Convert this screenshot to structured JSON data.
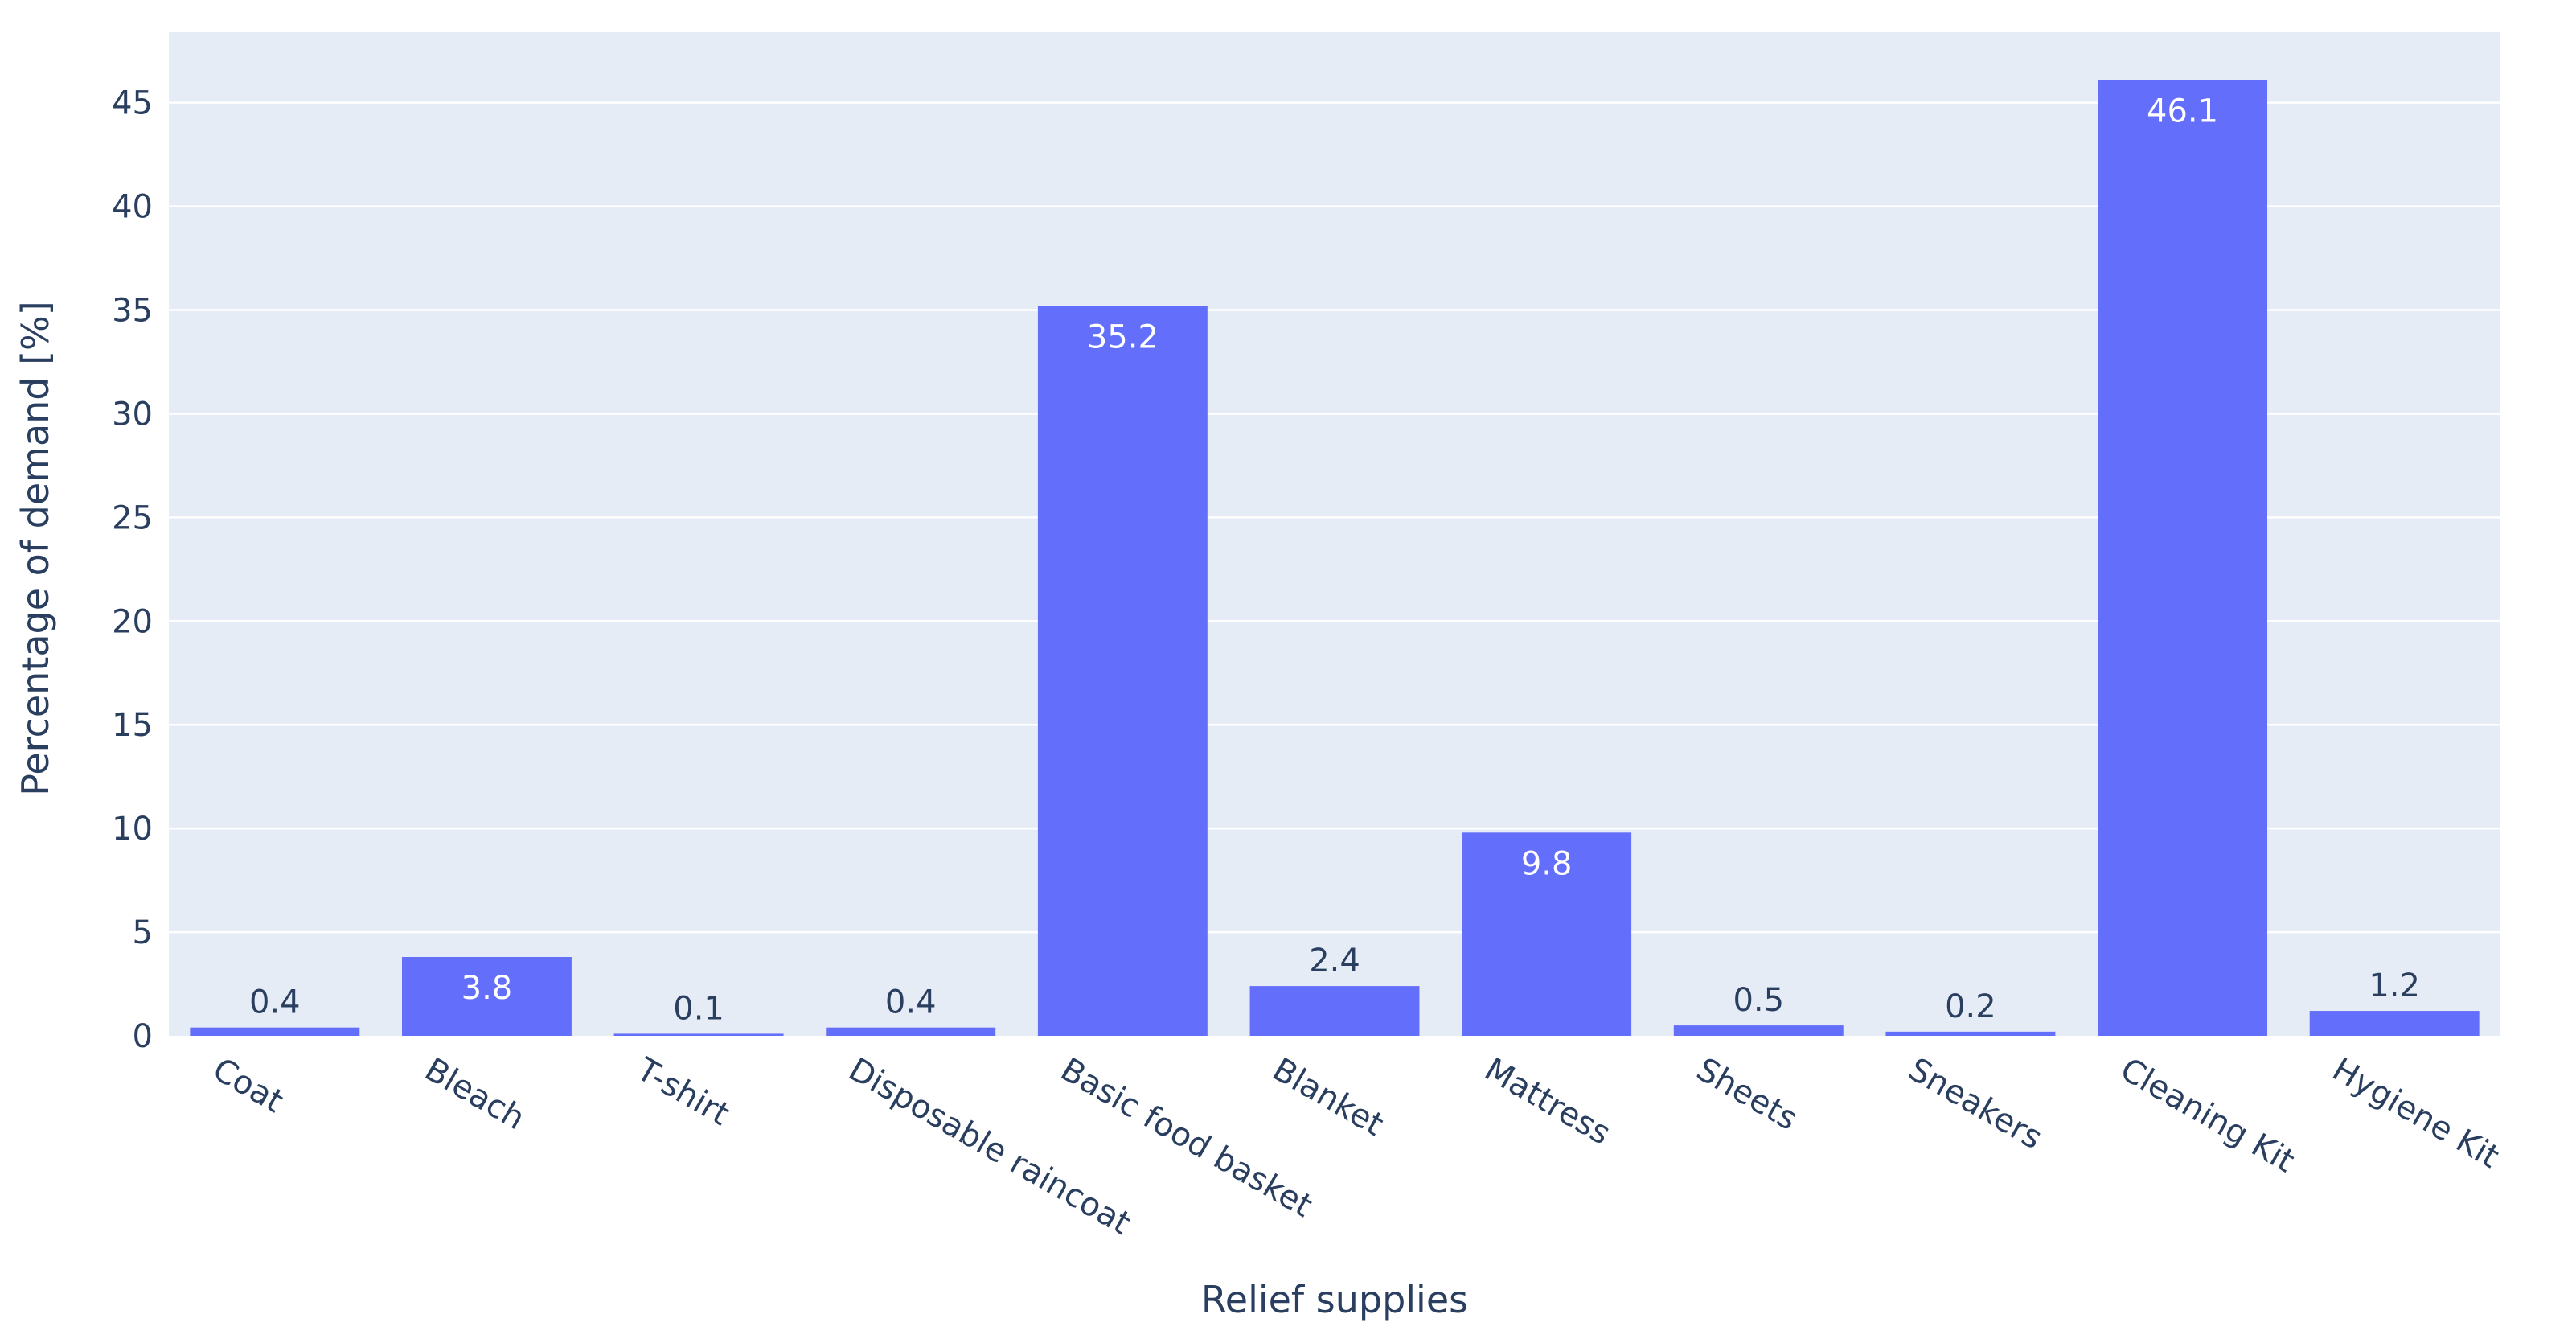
{
  "chart_data": {
    "type": "bar",
    "title": "",
    "xlabel": "Relief supplies",
    "ylabel": "Percentage of demand [%]",
    "categories": [
      "Coat",
      "Bleach",
      "T-shirt",
      "Disposable raincoat",
      "Basic food basket",
      "Blanket",
      "Mattress",
      "Sheets",
      "Sneakers",
      "Cleaning Kit",
      "Hygiene Kit"
    ],
    "values": [
      0.4,
      3.8,
      0.1,
      0.4,
      35.2,
      2.4,
      9.8,
      0.5,
      0.2,
      46.1,
      1.2
    ],
    "value_labels": [
      "0.4",
      "3.8",
      "0.1",
      "0.4",
      "35.2",
      "2.4",
      "9.8",
      "0.5",
      "0.2",
      "46.1",
      "1.2"
    ],
    "ylim": [
      0,
      48.4
    ],
    "yticks": [
      0,
      5,
      10,
      15,
      20,
      25,
      30,
      35,
      40,
      45
    ],
    "grid": true,
    "legend": "none",
    "colors": {
      "bar": "#636efa",
      "plot_background": "#e5ecf6",
      "gridline": "#ffffff",
      "text": "#2a3f5f",
      "label_inside": "#ffffff"
    }
  }
}
